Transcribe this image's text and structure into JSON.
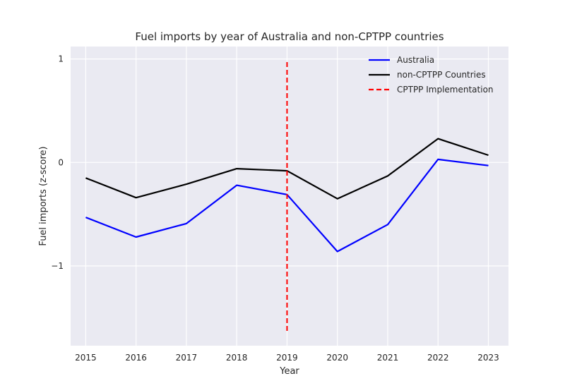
{
  "chart_data": {
    "type": "line",
    "title": "Fuel imports by year of Australia and non-CPTPP countries",
    "xlabel": "Year",
    "ylabel": "Fuel imports (z-score)",
    "x": [
      2015,
      2016,
      2017,
      2018,
      2019,
      2020,
      2021,
      2022,
      2023
    ],
    "xlim": [
      2014.7,
      2023.4
    ],
    "ylim": [
      -1.77,
      1.12
    ],
    "yticks": [
      -1,
      0,
      1
    ],
    "ytick_labels": [
      "−1",
      "0",
      "1"
    ],
    "grid": true,
    "legend_position": "top-right",
    "series": [
      {
        "name": "Australia",
        "color": "#0000ff",
        "values": [
          -0.53,
          -0.72,
          -0.59,
          -0.22,
          -0.31,
          -0.86,
          -0.6,
          0.03,
          -0.03
        ]
      },
      {
        "name": "non-CPTPP Countries",
        "color": "#000000",
        "values": [
          -0.15,
          -0.34,
          -0.21,
          -0.06,
          -0.08,
          -0.35,
          -0.13,
          0.23,
          0.07
        ]
      }
    ],
    "vline": {
      "name": "CPTPP Implementation",
      "x": 2019,
      "color": "#ff0000",
      "ymin": -1.63,
      "ymax": 0.97
    }
  }
}
